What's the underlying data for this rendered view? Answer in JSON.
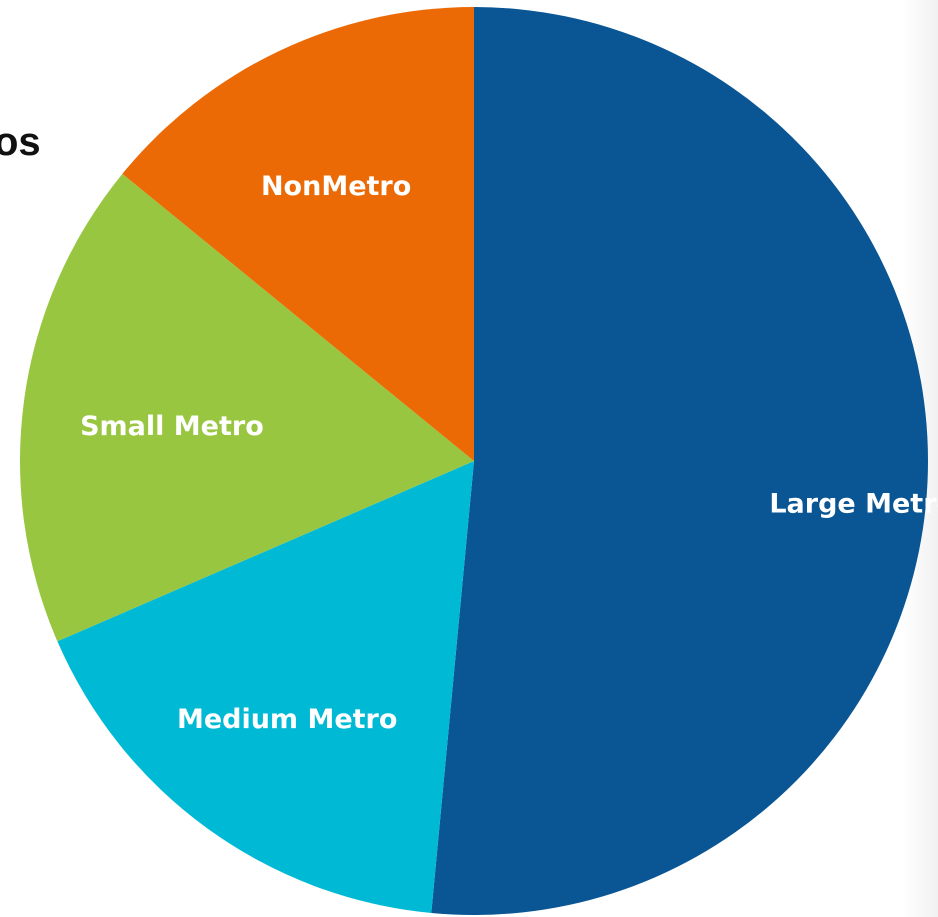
{
  "chart_data": {
    "type": "pie",
    "title_fragment": "os",
    "slices": [
      {
        "label": "Large Metro",
        "value": 51.5,
        "color": "#0a5593"
      },
      {
        "label": "Medium Metro",
        "value": 17.0,
        "color": "#00bad5"
      },
      {
        "label": "Small Metro",
        "value": 17.4,
        "color": "#99c640"
      },
      {
        "label": "NonMetro",
        "value": 14.1,
        "color": "#eb6a05"
      }
    ],
    "start": "12 o'clock",
    "direction": "clockwise",
    "labels_inside": true
  }
}
